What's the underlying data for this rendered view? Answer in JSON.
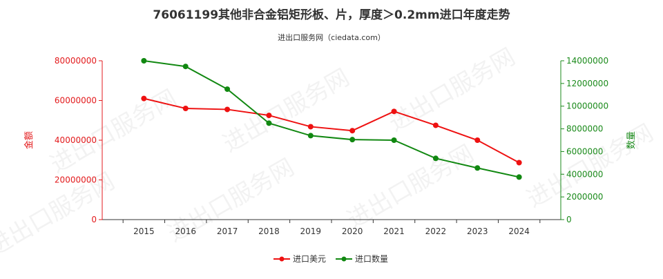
{
  "chart_data": {
    "type": "line",
    "title": "76061199其他非合金铝矩形板、片，厚度＞0.2mm进口年度走势",
    "subtitle": "进出口服务网（ciedata.com）",
    "watermark": "进出口服务网",
    "categories": [
      "2015",
      "2016",
      "2017",
      "2018",
      "2019",
      "2020",
      "2021",
      "2022",
      "2023",
      "2024"
    ],
    "y_left": {
      "label": "金额",
      "range": [
        0,
        80000000
      ],
      "ticks": [
        "0",
        "20000000",
        "40000000",
        "60000000",
        "80000000"
      ],
      "color": "#e31a1c"
    },
    "y_right": {
      "label": "数量",
      "range": [
        0,
        14000000
      ],
      "ticks": [
        "0",
        "2000000",
        "4000000",
        "6000000",
        "8000000",
        "10000000",
        "12000000",
        "14000000"
      ],
      "color": "#1a8a1a"
    },
    "series": [
      {
        "name": "进口美元",
        "axis": "left",
        "color": "#ee1111",
        "values": [
          61000000,
          56000000,
          55500000,
          52500000,
          46800000,
          44800000,
          54500000,
          47500000,
          40000000,
          28700000
        ]
      },
      {
        "name": "进口数量",
        "axis": "right",
        "color": "#118811",
        "values": [
          14000000,
          13500000,
          11500000,
          8500000,
          7400000,
          7050000,
          7000000,
          5400000,
          4550000,
          3750000
        ]
      }
    ],
    "grid": false,
    "legend_position": "bottom-center"
  }
}
